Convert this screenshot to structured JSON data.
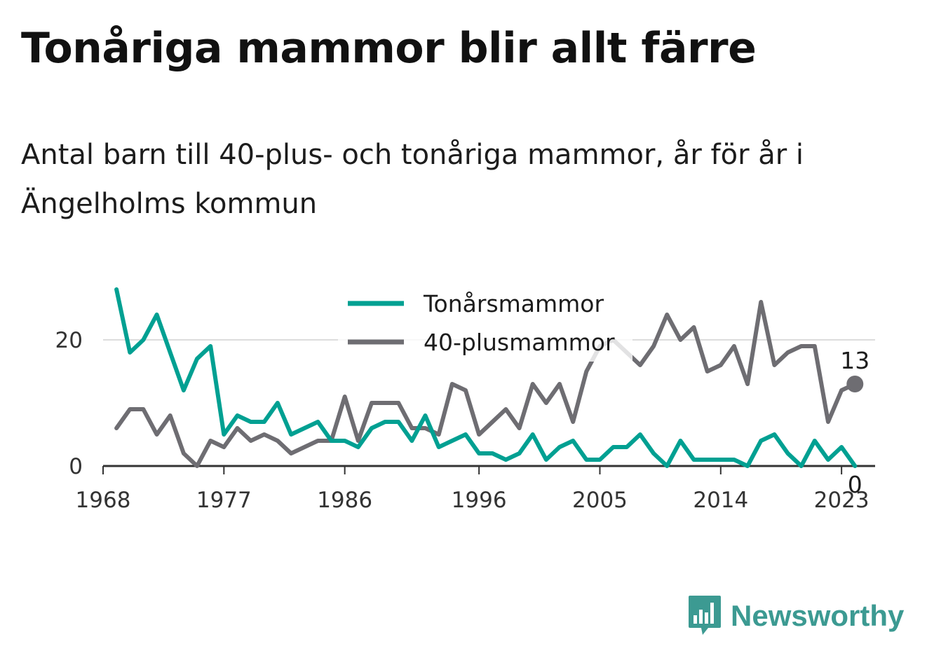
{
  "title": "Tonåriga mammor blir allt färre",
  "subtitle": "Antal barn till 40-plus- och tonåriga mammor, år för år i Ängelholms kommun",
  "brand": {
    "name": "Newsworthy",
    "color": "#3c9a92",
    "icon": "bar-chart-logo-icon"
  },
  "chart_data": {
    "type": "line",
    "x": [
      1969,
      1970,
      1971,
      1972,
      1973,
      1974,
      1975,
      1976,
      1977,
      1978,
      1979,
      1980,
      1981,
      1982,
      1983,
      1984,
      1985,
      1986,
      1987,
      1988,
      1989,
      1990,
      1991,
      1992,
      1993,
      1994,
      1995,
      1996,
      1997,
      1998,
      1999,
      2000,
      2001,
      2002,
      2003,
      2004,
      2005,
      2006,
      2007,
      2008,
      2009,
      2010,
      2011,
      2012,
      2013,
      2014,
      2015,
      2016,
      2017,
      2018,
      2019,
      2020,
      2021,
      2022,
      2023,
      2024
    ],
    "series": [
      {
        "name": "Tonårsmammor",
        "color": "#00a092",
        "values": [
          28,
          18,
          20,
          24,
          18,
          12,
          17,
          19,
          5,
          8,
          7,
          7,
          10,
          5,
          6,
          7,
          4,
          4,
          3,
          6,
          7,
          7,
          4,
          8,
          3,
          4,
          5,
          2,
          2,
          1,
          2,
          5,
          1,
          3,
          4,
          1,
          1,
          3,
          3,
          5,
          2,
          0,
          4,
          1,
          1,
          1,
          1,
          0,
          4,
          5,
          2,
          0,
          4,
          1,
          3,
          0
        ],
        "end_label": "0"
      },
      {
        "name": "40-plusmammor",
        "color": "#6e6d72",
        "values": [
          6,
          9,
          9,
          5,
          8,
          2,
          0,
          4,
          3,
          6,
          4,
          5,
          4,
          2,
          3,
          4,
          4,
          11,
          4,
          10,
          10,
          10,
          6,
          6,
          5,
          13,
          12,
          5,
          7,
          9,
          6,
          13,
          10,
          13,
          7,
          15,
          19,
          20,
          18,
          16,
          19,
          24,
          20,
          22,
          15,
          16,
          19,
          13,
          26,
          16,
          18,
          19,
          19,
          7,
          12,
          13
        ],
        "end_label": "13"
      }
    ],
    "x_ticks": [
      "1968",
      "1977",
      "1986",
      "1996",
      "2005",
      "2014",
      "2023"
    ],
    "y_ticks": [
      "0",
      "20"
    ],
    "xlim": [
      1968,
      2025.5
    ],
    "ylim": [
      0,
      30
    ],
    "grid": true,
    "legend_position": "top-center",
    "xlabel": "",
    "ylabel": ""
  }
}
